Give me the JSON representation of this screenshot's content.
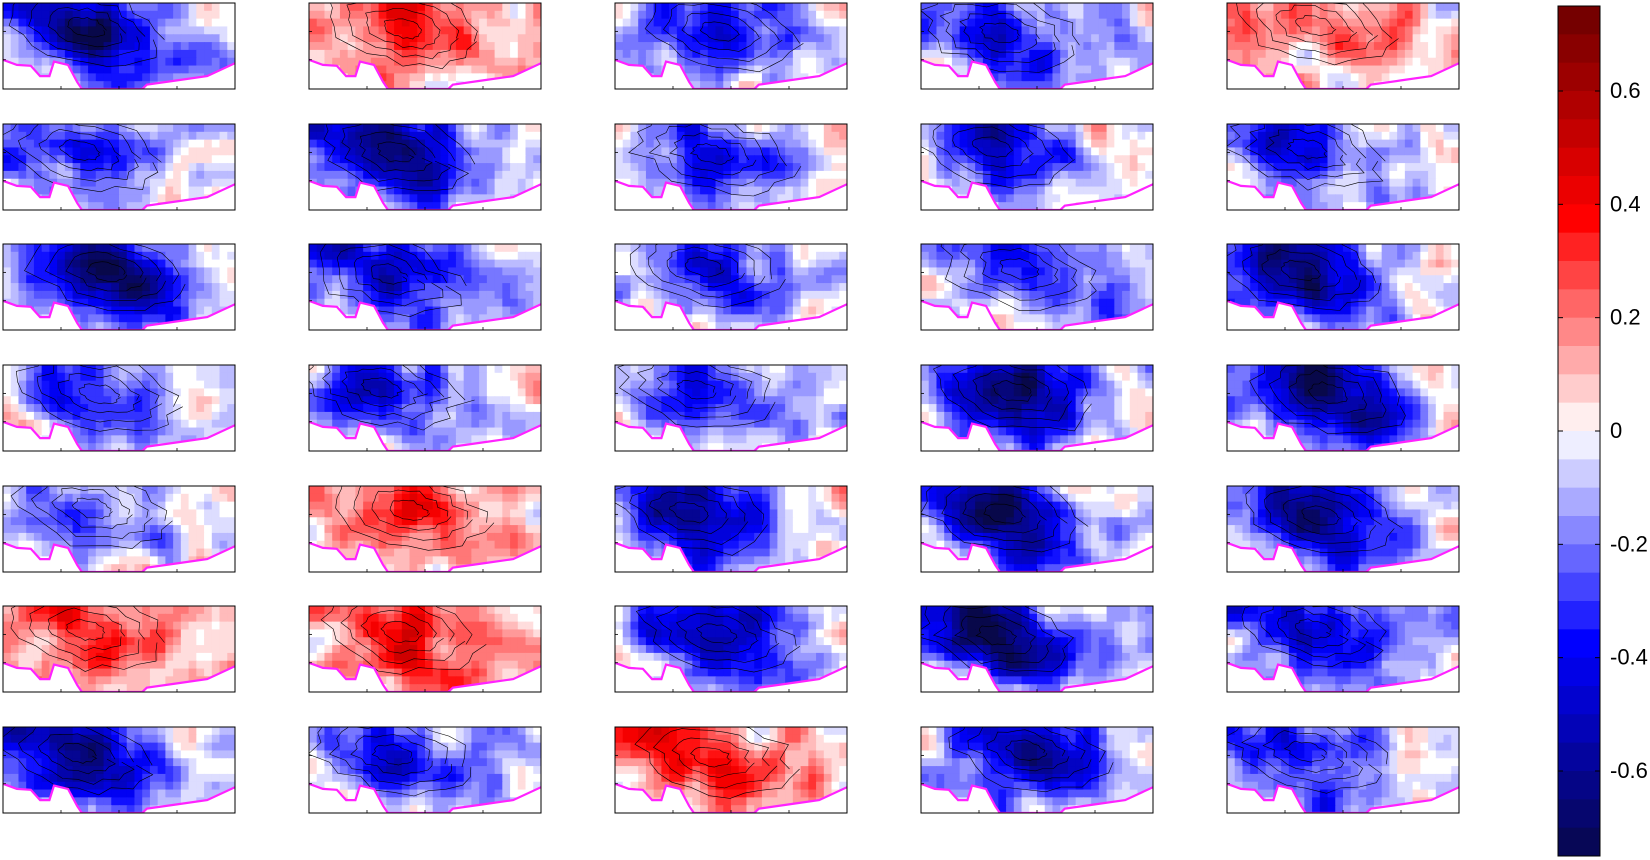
{
  "chart_data": {
    "type": "heatmap",
    "layout": {
      "rows": 7,
      "cols": 5
    },
    "panels": [
      {
        "id": 1,
        "polarity": -1,
        "intensity": 0.9,
        "seed": 11
      },
      {
        "id": 2,
        "polarity": 1,
        "intensity": 0.45,
        "seed": 12
      },
      {
        "id": 3,
        "polarity": -1,
        "intensity": 0.55,
        "seed": 13
      },
      {
        "id": 4,
        "polarity": -1,
        "intensity": 0.6,
        "seed": 14
      },
      {
        "id": 5,
        "polarity": 1,
        "intensity": 0.3,
        "seed": 15
      },
      {
        "id": 6,
        "polarity": -1,
        "intensity": 0.5,
        "seed": 21
      },
      {
        "id": 7,
        "polarity": -1,
        "intensity": 0.85,
        "seed": 22
      },
      {
        "id": 8,
        "polarity": -1,
        "intensity": 0.5,
        "seed": 23
      },
      {
        "id": 9,
        "polarity": -1,
        "intensity": 0.55,
        "seed": 24
      },
      {
        "id": 10,
        "polarity": -1,
        "intensity": 0.45,
        "seed": 25
      },
      {
        "id": 11,
        "polarity": -1,
        "intensity": 0.95,
        "seed": 31
      },
      {
        "id": 12,
        "polarity": -1,
        "intensity": 0.6,
        "seed": 32
      },
      {
        "id": 13,
        "polarity": -1,
        "intensity": 0.5,
        "seed": 33
      },
      {
        "id": 14,
        "polarity": -1,
        "intensity": 0.45,
        "seed": 34
      },
      {
        "id": 15,
        "polarity": -1,
        "intensity": 0.85,
        "seed": 35
      },
      {
        "id": 16,
        "polarity": -1,
        "intensity": 0.5,
        "seed": 41
      },
      {
        "id": 17,
        "polarity": -1,
        "intensity": 0.55,
        "seed": 42
      },
      {
        "id": 18,
        "polarity": -1,
        "intensity": 0.45,
        "seed": 43
      },
      {
        "id": 19,
        "polarity": -1,
        "intensity": 0.9,
        "seed": 44
      },
      {
        "id": 20,
        "polarity": -1,
        "intensity": 0.95,
        "seed": 45
      },
      {
        "id": 21,
        "polarity": -1,
        "intensity": 0.4,
        "seed": 51
      },
      {
        "id": 22,
        "polarity": 1,
        "intensity": 0.35,
        "seed": 52
      },
      {
        "id": 23,
        "polarity": -1,
        "intensity": 0.8,
        "seed": 53
      },
      {
        "id": 24,
        "polarity": -1,
        "intensity": 0.95,
        "seed": 54
      },
      {
        "id": 25,
        "polarity": -1,
        "intensity": 0.75,
        "seed": 55
      },
      {
        "id": 26,
        "polarity": 1,
        "intensity": 0.35,
        "seed": 61
      },
      {
        "id": 27,
        "polarity": 1,
        "intensity": 0.5,
        "seed": 62
      },
      {
        "id": 28,
        "polarity": -1,
        "intensity": 0.75,
        "seed": 63
      },
      {
        "id": 29,
        "polarity": -1,
        "intensity": 0.95,
        "seed": 64
      },
      {
        "id": 30,
        "polarity": -1,
        "intensity": 0.55,
        "seed": 65
      },
      {
        "id": 31,
        "polarity": -1,
        "intensity": 0.85,
        "seed": 71
      },
      {
        "id": 32,
        "polarity": -1,
        "intensity": 0.6,
        "seed": 72
      },
      {
        "id": 33,
        "polarity": 1,
        "intensity": 0.4,
        "seed": 73
      },
      {
        "id": 34,
        "polarity": -1,
        "intensity": 0.85,
        "seed": 74
      },
      {
        "id": 35,
        "polarity": -1,
        "intensity": 0.55,
        "seed": 75
      }
    ],
    "boundary_color": "#ff22ff",
    "colorbar": {
      "min": -0.75,
      "max": 0.75,
      "ticks": [
        -0.6,
        -0.4,
        -0.2,
        0,
        0.2,
        0.4,
        0.6
      ],
      "tick_labels": [
        "-0.6",
        "-0.4",
        "-0.2",
        "0",
        "0.2",
        "0.4",
        "0.6"
      ],
      "colormap": [
        "#08084a",
        "#0000ff",
        "#ffffff",
        "#ff0000",
        "#6b0000"
      ]
    },
    "xlabel": "",
    "ylabel": "",
    "title": ""
  }
}
